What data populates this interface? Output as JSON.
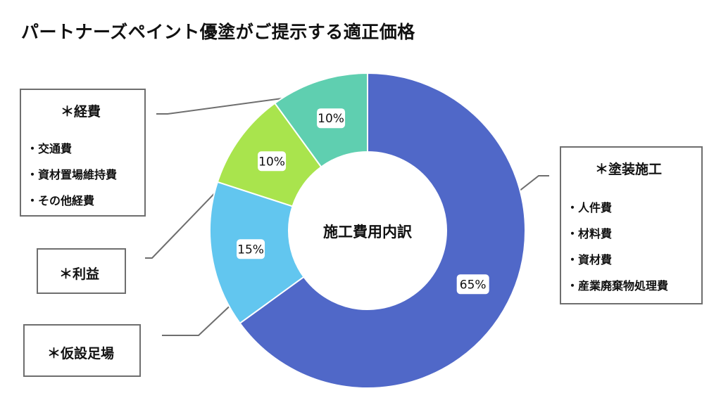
{
  "title": "パートナーズペイント優塗がご提示する適正価格",
  "colors": {
    "series": [
      "#5068c8",
      "#62c6ef",
      "#a9e44d",
      "#5fcfb0"
    ],
    "leader": "#6e6e6e",
    "box_border": "#6e6e6e"
  },
  "chart_data": {
    "type": "pie",
    "style": "donut",
    "center_label": "施工費用内訳",
    "categories": [
      "塗装施工",
      "仮設足場",
      "利益",
      "経費"
    ],
    "values": [
      65,
      15,
      10,
      10
    ],
    "data_labels": [
      "65%",
      "15%",
      "10%",
      "10%"
    ],
    "start_angle": "12 o'clock",
    "direction": "clockwise"
  },
  "callouts": {
    "keihi": {
      "title": "＊経費",
      "items": [
        "・交通費",
        "・資材置場維持費",
        "・その他経費"
      ]
    },
    "rieki": {
      "title": "＊利益"
    },
    "kasetsu": {
      "title": "＊仮設足場"
    },
    "tosou": {
      "title": "＊塗装施工",
      "items": [
        "・人件費",
        "・材料費",
        "・資材費",
        "・産業廃棄物処理費"
      ]
    }
  }
}
